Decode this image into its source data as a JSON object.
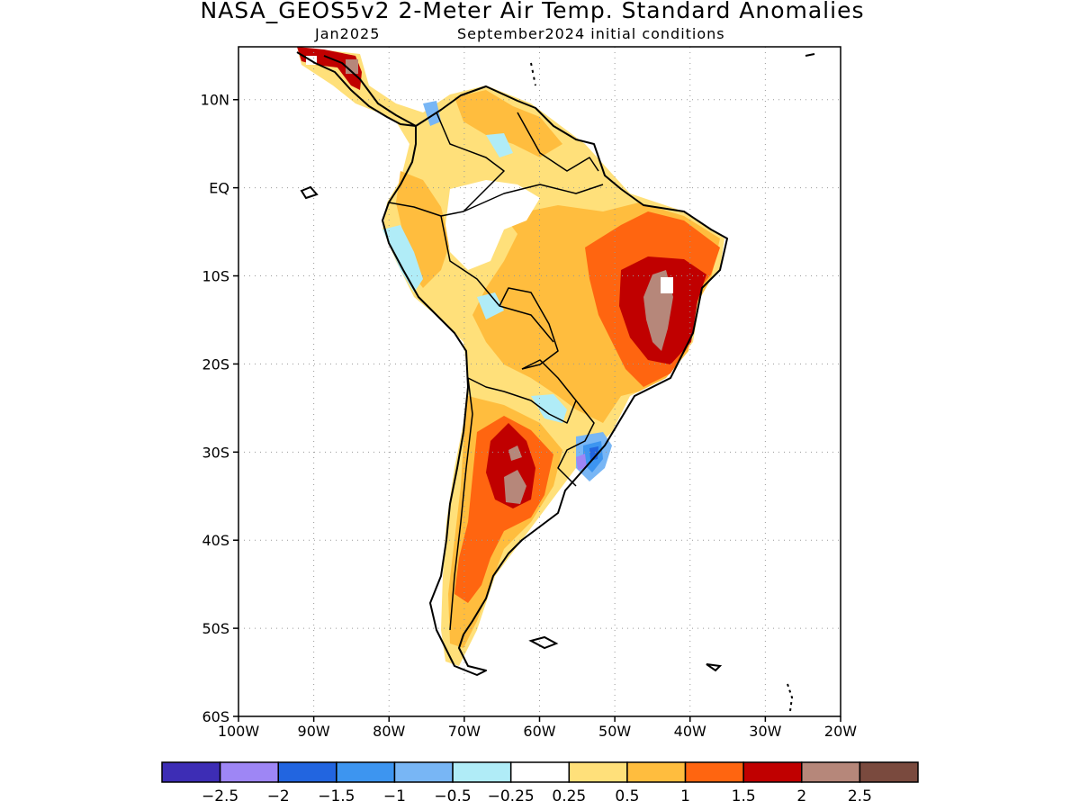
{
  "title": "NASA_GEOS5v2 2-Meter Air Temp. Standard Anomalies",
  "subtitle_left": "Jan2025",
  "subtitle_right": "September2024 initial conditions",
  "map": {
    "lon_range": [
      -100,
      -20
    ],
    "lat_range": [
      -60,
      16
    ],
    "y_ticks": [
      "10N",
      "EQ",
      "10S",
      "20S",
      "30S",
      "40S",
      "50S",
      "60S"
    ],
    "x_ticks": [
      "100W",
      "90W",
      "80W",
      "70W",
      "60W",
      "50W",
      "40W",
      "30W",
      "20W"
    ],
    "gridlines": "dotted"
  },
  "colorbar": {
    "colors": [
      "#3d2db5",
      "#9e86f5",
      "#2265e0",
      "#3d95f0",
      "#78b6f5",
      "#b0ecf7",
      "#ffffff",
      "#ffe07a",
      "#ffbd3e",
      "#ff6510",
      "#c00000",
      "#b6877a",
      "#7a4a3e"
    ],
    "labels": [
      "-2.5",
      "-2",
      "-1.5",
      "-1",
      "-0.5",
      "-0.25",
      "0.25",
      "0.5",
      "1",
      "1.5",
      "2",
      "2.5"
    ]
  }
}
